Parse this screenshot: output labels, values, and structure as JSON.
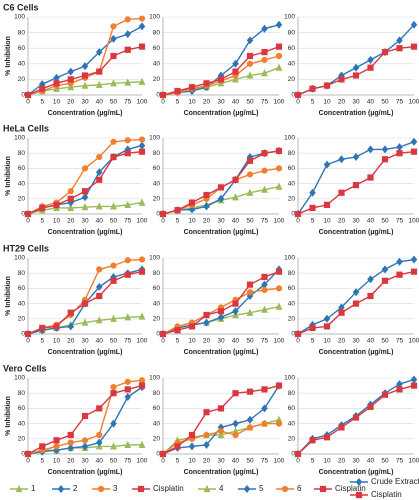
{
  "chart_data": [
    {
      "type": "line",
      "title": "C6 Cells",
      "ylabel": "% Inhibition",
      "xlabel": "Concentration (µg/mL)",
      "categories": [
        "0",
        "5",
        "10",
        "20",
        "30",
        "40",
        "50",
        "75",
        "100"
      ],
      "ylim": [
        0,
        100
      ],
      "yticks": [
        0,
        20,
        40,
        60,
        80,
        100
      ],
      "grid": true,
      "series": [
        {
          "color": "#9bbb59",
          "marker": "triangle",
          "values": [
            0,
            5,
            8,
            10,
            12,
            13,
            15,
            16,
            17
          ]
        },
        {
          "color": "#2e75b6",
          "marker": "diamond",
          "values": [
            0,
            14,
            22,
            30,
            37,
            55,
            72,
            78,
            88
          ]
        },
        {
          "color": "#f07f2f",
          "marker": "circle",
          "values": [
            0,
            5,
            12,
            15,
            22,
            30,
            88,
            97,
            98
          ]
        },
        {
          "color": "#d8383f",
          "marker": "square",
          "values": [
            0,
            8,
            15,
            20,
            25,
            30,
            50,
            58,
            62
          ]
        }
      ]
    },
    {
      "type": "line",
      "xlabel": "Concentration (µg/mL)",
      "categories": [
        "0",
        "5",
        "10",
        "20",
        "30",
        "40",
        "50",
        "75",
        "100"
      ],
      "ylim": [
        0,
        100
      ],
      "yticks": [
        0,
        20,
        40,
        60,
        80,
        100
      ],
      "grid": true,
      "series": [
        {
          "color": "#9bbb59",
          "marker": "triangle",
          "values": [
            0,
            5,
            8,
            10,
            15,
            20,
            25,
            28,
            35
          ]
        },
        {
          "color": "#2e75b6",
          "marker": "diamond",
          "values": [
            0,
            3,
            5,
            10,
            25,
            40,
            70,
            85,
            90
          ]
        },
        {
          "color": "#f07f2f",
          "marker": "circle",
          "values": [
            0,
            3,
            8,
            12,
            18,
            25,
            40,
            45,
            50
          ]
        },
        {
          "color": "#d8383f",
          "marker": "square",
          "values": [
            0,
            5,
            10,
            15,
            20,
            30,
            50,
            55,
            62
          ]
        }
      ]
    },
    {
      "type": "line",
      "xlabel": "Concentration (µg/mL)",
      "categories": [
        "0",
        "5",
        "10",
        "20",
        "30",
        "40",
        "50",
        "75",
        "100"
      ],
      "ylim": [
        0,
        100
      ],
      "yticks": [
        0,
        20,
        40,
        60,
        80,
        100
      ],
      "grid": true,
      "series": [
        {
          "color": "#2e75b6",
          "marker": "diamond",
          "values": [
            0,
            8,
            12,
            25,
            35,
            45,
            55,
            70,
            90
          ]
        },
        {
          "color": "#d8383f",
          "marker": "square",
          "values": [
            0,
            8,
            12,
            20,
            25,
            35,
            55,
            60,
            62
          ]
        }
      ]
    },
    {
      "type": "line",
      "title": "HeLa Cells",
      "ylabel": "% Inhibition",
      "xlabel": "Concentration (µg/mL)",
      "categories": [
        "0",
        "5",
        "10",
        "20",
        "30",
        "40",
        "50",
        "75",
        "100"
      ],
      "ylim": [
        0,
        100
      ],
      "yticks": [
        0,
        20,
        40,
        60,
        80,
        100
      ],
      "grid": true,
      "series": [
        {
          "color": "#9bbb59",
          "marker": "triangle",
          "values": [
            0,
            5,
            8,
            8,
            9,
            10,
            10,
            12,
            15
          ]
        },
        {
          "color": "#2e75b6",
          "marker": "diamond",
          "values": [
            0,
            8,
            12,
            15,
            22,
            55,
            75,
            85,
            90
          ]
        },
        {
          "color": "#f07f2f",
          "marker": "circle",
          "values": [
            0,
            10,
            15,
            30,
            60,
            75,
            95,
            97,
            98
          ]
        },
        {
          "color": "#d8383f",
          "marker": "square",
          "values": [
            0,
            8,
            12,
            20,
            30,
            45,
            75,
            80,
            82
          ]
        }
      ]
    },
    {
      "type": "line",
      "xlabel": "Concentration (µg/mL)",
      "categories": [
        "0",
        "5",
        "10",
        "20",
        "30",
        "40",
        "50",
        "75",
        "100"
      ],
      "ylim": [
        0,
        100
      ],
      "yticks": [
        0,
        20,
        40,
        60,
        80,
        100
      ],
      "grid": true,
      "series": [
        {
          "color": "#9bbb59",
          "marker": "triangle",
          "values": [
            0,
            5,
            8,
            12,
            18,
            22,
            28,
            32,
            36
          ]
        },
        {
          "color": "#2e75b6",
          "marker": "diamond",
          "values": [
            0,
            5,
            6,
            10,
            20,
            45,
            75,
            80,
            83
          ]
        },
        {
          "color": "#f07f2f",
          "marker": "circle",
          "values": [
            0,
            5,
            12,
            20,
            35,
            45,
            52,
            57,
            60
          ]
        },
        {
          "color": "#d8383f",
          "marker": "square",
          "values": [
            0,
            5,
            15,
            25,
            35,
            45,
            70,
            80,
            83
          ]
        }
      ]
    },
    {
      "type": "line",
      "xlabel": "Concentration (µg/mL)",
      "categories": [
        "0",
        "5",
        "10",
        "20",
        "30",
        "40",
        "50",
        "75",
        "100"
      ],
      "ylim": [
        0,
        100
      ],
      "yticks": [
        0,
        20,
        40,
        60,
        80,
        100
      ],
      "grid": true,
      "series": [
        {
          "color": "#2e75b6",
          "marker": "diamond",
          "values": [
            0,
            28,
            65,
            72,
            75,
            85,
            85,
            88,
            95
          ]
        },
        {
          "color": "#d8383f",
          "marker": "square",
          "values": [
            0,
            8,
            12,
            28,
            38,
            48,
            72,
            80,
            82
          ]
        }
      ]
    },
    {
      "type": "line",
      "title": "HT29 Cells",
      "ylabel": "% Inhibition",
      "xlabel": "Concentration (µg/mL)",
      "categories": [
        "0",
        "5",
        "10",
        "20",
        "30",
        "40",
        "50",
        "75",
        "100"
      ],
      "ylim": [
        0,
        100
      ],
      "yticks": [
        0,
        20,
        40,
        60,
        80,
        100
      ],
      "grid": true,
      "series": [
        {
          "color": "#9bbb59",
          "marker": "triangle",
          "values": [
            0,
            5,
            8,
            12,
            15,
            18,
            20,
            22,
            23
          ]
        },
        {
          "color": "#2e75b6",
          "marker": "diamond",
          "values": [
            0,
            5,
            8,
            10,
            40,
            62,
            75,
            80,
            85
          ]
        },
        {
          "color": "#f07f2f",
          "marker": "circle",
          "values": [
            0,
            8,
            12,
            25,
            45,
            85,
            90,
            97,
            98
          ]
        },
        {
          "color": "#d8383f",
          "marker": "square",
          "values": [
            0,
            8,
            10,
            28,
            40,
            50,
            70,
            78,
            82
          ]
        }
      ]
    },
    {
      "type": "line",
      "xlabel": "Concentration (µg/mL)",
      "categories": [
        "0",
        "5",
        "10",
        "20",
        "30",
        "40",
        "50",
        "75",
        "100"
      ],
      "ylim": [
        0,
        100
      ],
      "yticks": [
        0,
        20,
        40,
        60,
        80,
        100
      ],
      "grid": true,
      "series": [
        {
          "color": "#9bbb59",
          "marker": "triangle",
          "values": [
            0,
            8,
            12,
            15,
            20,
            25,
            28,
            32,
            36
          ]
        },
        {
          "color": "#2e75b6",
          "marker": "diamond",
          "values": [
            0,
            8,
            12,
            15,
            22,
            30,
            50,
            65,
            85
          ]
        },
        {
          "color": "#f07f2f",
          "marker": "circle",
          "values": [
            0,
            10,
            15,
            25,
            35,
            45,
            55,
            58,
            60
          ]
        },
        {
          "color": "#d8383f",
          "marker": "square",
          "values": [
            0,
            5,
            10,
            25,
            30,
            40,
            65,
            75,
            82
          ]
        }
      ]
    },
    {
      "type": "line",
      "xlabel": "Concentration (µg/mL)",
      "categories": [
        "0",
        "5",
        "10",
        "20",
        "30",
        "40",
        "50",
        "75",
        "100"
      ],
      "ylim": [
        0,
        100
      ],
      "yticks": [
        0,
        20,
        40,
        60,
        80,
        100
      ],
      "grid": true,
      "series": [
        {
          "color": "#2e75b6",
          "marker": "diamond",
          "values": [
            0,
            12,
            20,
            35,
            55,
            72,
            85,
            95,
            98
          ]
        },
        {
          "color": "#d8383f",
          "marker": "square",
          "values": [
            0,
            8,
            10,
            28,
            40,
            50,
            70,
            78,
            82
          ]
        }
      ]
    },
    {
      "type": "line",
      "title": "Vero Cells",
      "ylabel": "% Inhibition",
      "xlabel": "Concentration (µg/mL)",
      "categories": [
        "0",
        "5",
        "10",
        "20",
        "30",
        "40",
        "50",
        "75",
        "100"
      ],
      "ylim": [
        0,
        100
      ],
      "yticks": [
        0,
        20,
        40,
        60,
        80,
        100
      ],
      "grid": true,
      "series": [
        {
          "name": "1",
          "color": "#9bbb59",
          "marker": "triangle",
          "values": [
            0,
            5,
            5,
            8,
            8,
            10,
            10,
            12,
            12
          ]
        },
        {
          "name": "2",
          "color": "#2e75b6",
          "marker": "diamond",
          "values": [
            0,
            3,
            5,
            8,
            10,
            15,
            40,
            75,
            88
          ]
        },
        {
          "name": "3",
          "color": "#f07f2f",
          "marker": "circle",
          "values": [
            0,
            5,
            10,
            15,
            18,
            25,
            88,
            95,
            97
          ]
        },
        {
          "name": "Cisplatin",
          "color": "#d8383f",
          "marker": "square",
          "values": [
            0,
            10,
            18,
            25,
            50,
            60,
            80,
            85,
            90
          ]
        }
      ]
    },
    {
      "type": "line",
      "xlabel": "Concentration (µg/mL)",
      "categories": [
        "0",
        "5",
        "10",
        "20",
        "30",
        "40",
        "50",
        "75",
        "100"
      ],
      "ylim": [
        0,
        100
      ],
      "yticks": [
        0,
        20,
        40,
        60,
        80,
        100
      ],
      "grid": true,
      "series": [
        {
          "name": "4",
          "color": "#9bbb59",
          "marker": "triangle",
          "values": [
            0,
            18,
            22,
            25,
            25,
            30,
            35,
            40,
            45
          ]
        },
        {
          "name": "5",
          "color": "#2e75b6",
          "marker": "diamond",
          "values": [
            0,
            8,
            10,
            12,
            35,
            40,
            45,
            60,
            90
          ]
        },
        {
          "name": "6",
          "color": "#f07f2f",
          "marker": "circle",
          "values": [
            0,
            15,
            20,
            25,
            30,
            25,
            35,
            40,
            40
          ]
        },
        {
          "name": "Cisplatin",
          "color": "#d8383f",
          "marker": "square",
          "values": [
            0,
            10,
            25,
            55,
            60,
            80,
            82,
            85,
            90
          ]
        }
      ]
    },
    {
      "type": "line",
      "xlabel": "Concentration (µg/mL)",
      "categories": [
        "0",
        "5",
        "10",
        "20",
        "30",
        "40",
        "50",
        "75",
        "100"
      ],
      "ylim": [
        0,
        100
      ],
      "yticks": [
        0,
        20,
        40,
        60,
        80,
        100
      ],
      "grid": true,
      "series": [
        {
          "name": "Crude Extract",
          "color": "#2e75b6",
          "marker": "diamond",
          "values": [
            0,
            20,
            25,
            38,
            50,
            65,
            80,
            92,
            98
          ]
        },
        {
          "name": "Cisplatin",
          "color": "#d8383f",
          "marker": "square",
          "values": [
            0,
            18,
            22,
            35,
            48,
            62,
            78,
            85,
            90
          ]
        }
      ]
    }
  ]
}
